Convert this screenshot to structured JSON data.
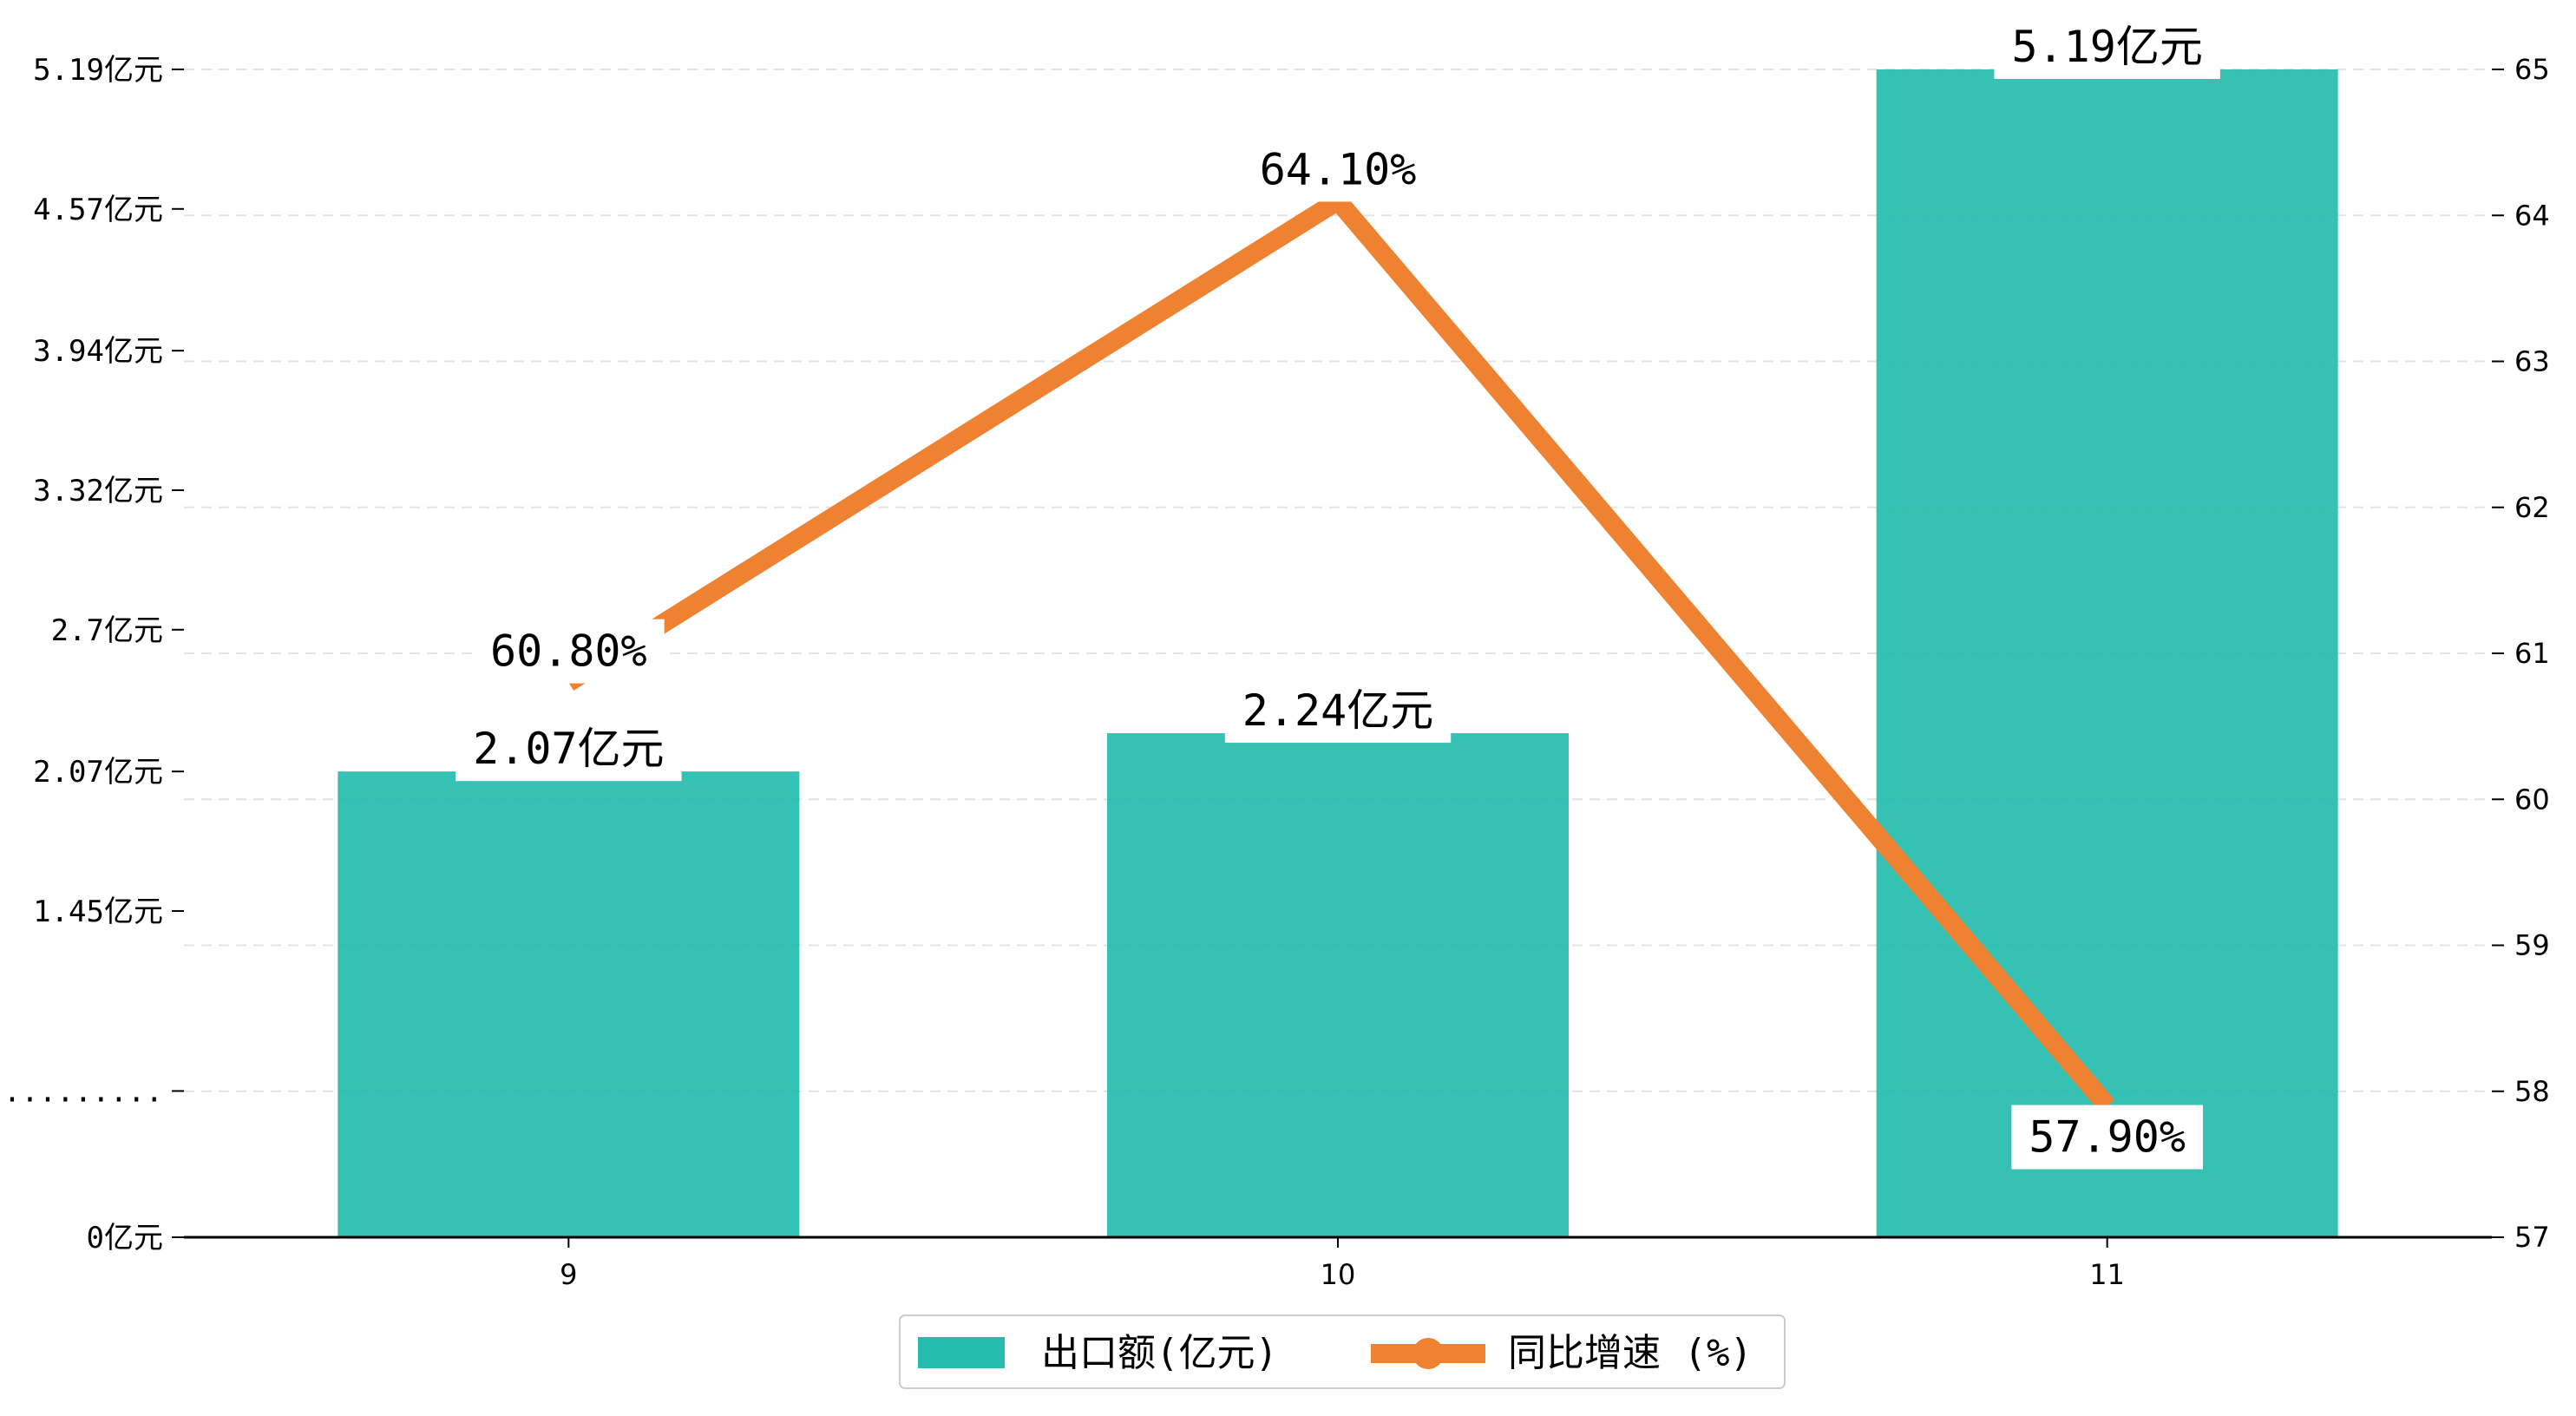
{
  "chart_data": {
    "type": "bar",
    "categories": [
      "9",
      "10",
      "11"
    ],
    "series": [
      {
        "name": "出口额(亿元)",
        "type": "bar",
        "axis": "left",
        "values": [
          2.07,
          2.24,
          5.19
        ],
        "labels": [
          "2.07亿元",
          "2.24亿元",
          "5.19亿元"
        ],
        "color": "#26bcae"
      },
      {
        "name": "同比增速 (%)",
        "type": "line",
        "axis": "right",
        "values": [
          60.8,
          64.1,
          57.9
        ],
        "labels": [
          "60.80%",
          "64.10%",
          "57.90%"
        ],
        "color": "#ef8231"
      }
    ],
    "y_left": {
      "ylim": [
        0,
        5.19
      ],
      "ticks": [
        0,
        0.65,
        1.45,
        2.07,
        2.7,
        3.32,
        3.94,
        4.57,
        5.19
      ],
      "tick_labels": [
        "0亿元",
        ".........",
        "1.45亿元",
        "2.07亿元",
        "2.7亿元",
        "3.32亿元",
        "3.94亿元",
        "4.57亿元",
        "5.19亿元"
      ]
    },
    "y_right": {
      "ylim": [
        57,
        65
      ],
      "ticks": [
        57,
        58,
        59,
        60,
        61,
        62,
        63,
        64,
        65
      ],
      "tick_labels": [
        "57",
        "58",
        "59",
        "60",
        "61",
        "62",
        "63",
        "64",
        "65"
      ]
    },
    "title": "",
    "xlabel": "",
    "ylabel": "",
    "grid": true,
    "legend_position": "bottom-center"
  }
}
